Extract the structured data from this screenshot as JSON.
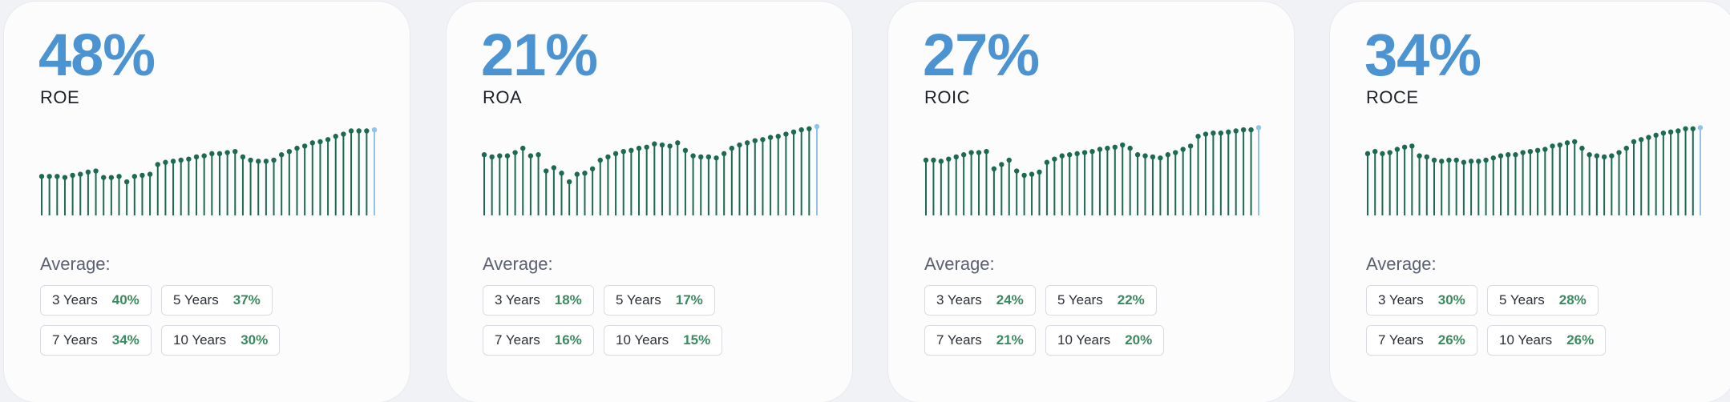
{
  "colors": {
    "accent": "#4b93d1",
    "stem": "#1c6b4f",
    "last_stem": "#8ec4e8",
    "value_green": "#3b8a5f"
  },
  "cards": [
    {
      "value": "48%",
      "metric": "ROE",
      "average_label": "Average:",
      "averages": [
        {
          "period": "3 Years",
          "value": "40%"
        },
        {
          "period": "5 Years",
          "value": "37%"
        },
        {
          "period": "7 Years",
          "value": "34%"
        },
        {
          "period": "10 Years",
          "value": "30%"
        }
      ],
      "chart_data": {
        "type": "bar",
        "values": [
          36,
          36,
          36,
          35,
          37,
          38,
          40,
          41,
          35,
          35,
          36,
          31,
          36,
          37,
          38,
          47,
          49,
          50,
          51,
          52,
          54,
          55,
          57,
          57,
          58,
          59,
          54,
          51,
          50,
          50,
          51,
          56,
          59,
          62,
          64,
          67,
          68,
          70,
          73,
          75,
          78,
          78,
          78,
          79
        ]
      }
    },
    {
      "value": "21%",
      "metric": "ROA",
      "average_label": "Average:",
      "averages": [
        {
          "period": "3 Years",
          "value": "18%"
        },
        {
          "period": "5 Years",
          "value": "17%"
        },
        {
          "period": "7 Years",
          "value": "16%"
        },
        {
          "period": "10 Years",
          "value": "15%"
        }
      ],
      "chart_data": {
        "type": "bar",
        "values": [
          56,
          54,
          55,
          55,
          58,
          62,
          55,
          56,
          41,
          44,
          39,
          31,
          38,
          39,
          43,
          51,
          54,
          57,
          59,
          60,
          62,
          63,
          66,
          65,
          64,
          67,
          60,
          55,
          54,
          54,
          53,
          57,
          62,
          65,
          67,
          69,
          70,
          72,
          73,
          75,
          77,
          79,
          80,
          82
        ]
      }
    },
    {
      "value": "27%",
      "metric": "ROIC",
      "average_label": "Average:",
      "averages": [
        {
          "period": "3 Years",
          "value": "24%"
        },
        {
          "period": "5 Years",
          "value": "22%"
        },
        {
          "period": "7 Years",
          "value": "21%"
        },
        {
          "period": "10 Years",
          "value": "20%"
        }
      ],
      "chart_data": {
        "type": "bar",
        "values": [
          51,
          51,
          50,
          52,
          54,
          56,
          58,
          58,
          59,
          43,
          47,
          51,
          41,
          37,
          38,
          40,
          49,
          52,
          55,
          56,
          57,
          58,
          59,
          61,
          62,
          63,
          65,
          62,
          56,
          55,
          54,
          53,
          56,
          58,
          61,
          64,
          73,
          75,
          76,
          76,
          77,
          78,
          79,
          79,
          81
        ]
      }
    },
    {
      "value": "34%",
      "metric": "ROCE",
      "average_label": "Average:",
      "averages": [
        {
          "period": "3 Years",
          "value": "30%"
        },
        {
          "period": "5 Years",
          "value": "28%"
        },
        {
          "period": "7 Years",
          "value": "26%"
        },
        {
          "period": "10 Years",
          "value": "26%"
        }
      ],
      "chart_data": {
        "type": "bar",
        "values": [
          57,
          59,
          57,
          58,
          61,
          63,
          64,
          55,
          54,
          51,
          50,
          51,
          51,
          49,
          50,
          50,
          51,
          53,
          55,
          56,
          56,
          58,
          59,
          60,
          61,
          64,
          65,
          67,
          68,
          62,
          56,
          55,
          54,
          55,
          58,
          62,
          68,
          70,
          72,
          74,
          76,
          77,
          78,
          80,
          80,
          81
        ]
      }
    }
  ]
}
